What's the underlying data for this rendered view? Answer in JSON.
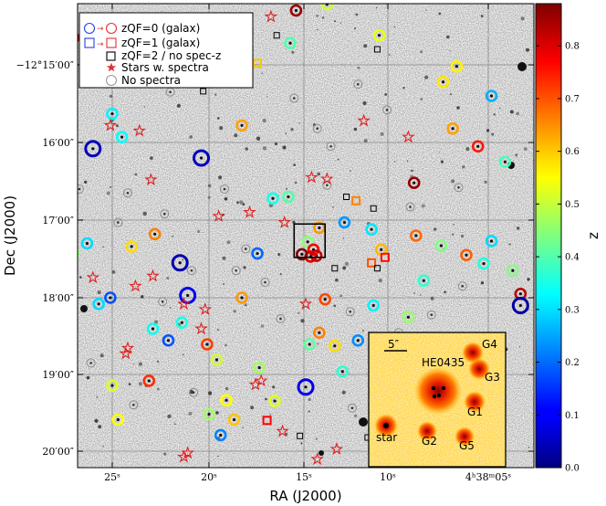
{
  "chart_data": {
    "type": "scatter",
    "xlabel": "RA (J2000)",
    "ylabel": "Dec (J2000)",
    "x_tick_labels": [
      "25ˢ",
      "20ˢ",
      "15ˢ",
      "10ˢ",
      "4ʰ38ᵐ05ˢ"
    ],
    "y_tick_labels": [
      "−12°15′00″",
      "16′00″",
      "17′00″",
      "18′00″",
      "19′00″",
      "20′00″"
    ],
    "colorbar": {
      "label": "z",
      "range": [
        0.0,
        0.88
      ],
      "ticks": [
        "0.0",
        "0.1",
        "0.2",
        "0.3",
        "0.4",
        "0.5",
        "0.6",
        "0.7",
        "0.8"
      ],
      "colormap": "jet"
    },
    "legend": {
      "placement": "top-left",
      "entries": [
        {
          "marker": "circle",
          "text": "zQF=0 (galax)"
        },
        {
          "marker": "square",
          "text": "zQF=1 (galax)"
        },
        {
          "marker": "square-black",
          "text": "zQF=2 / no spec-z"
        },
        {
          "marker": "star",
          "text": "Stars w. spectra"
        },
        {
          "marker": "circle-gray",
          "text": "No spectra"
        }
      ]
    },
    "galaxies_zqf0": [
      {
        "x": 25.0,
        "y": -15.63,
        "z": 0.32
      },
      {
        "x": 24.5,
        "y": -15.93,
        "z": 0.33
      },
      {
        "x": 26.0,
        "y": -16.08,
        "z": 0.05
      },
      {
        "x": 19.4,
        "y": -14.92,
        "z": 0.12
      },
      {
        "x": 18.9,
        "y": -14.47,
        "z": 0.44
      },
      {
        "x": 15.8,
        "y": -14.72,
        "z": 0.4
      },
      {
        "x": 13.8,
        "y": -14.05,
        "z": 0.47
      },
      {
        "x": 13.9,
        "y": -14.22,
        "z": 0.51
      },
      {
        "x": 15.5,
        "y": -14.3,
        "z": 0.86
      },
      {
        "x": 20.4,
        "y": -16.2,
        "z": 0.05
      },
      {
        "x": 11.2,
        "y": -14.62,
        "z": 0.53
      },
      {
        "x": 7.9,
        "y": -15.22,
        "z": 0.57
      },
      {
        "x": 7.2,
        "y": -15.02,
        "z": 0.56
      },
      {
        "x": 5.4,
        "y": -15.4,
        "z": 0.26
      },
      {
        "x": 7.4,
        "y": -15.82,
        "z": 0.63
      },
      {
        "x": 6.1,
        "y": -16.05,
        "z": 0.75
      },
      {
        "x": 4.7,
        "y": -16.25,
        "z": 0.39
      },
      {
        "x": 13.0,
        "y": -17.03,
        "z": 0.24
      },
      {
        "x": 11.6,
        "y": -17.12,
        "z": 0.31
      },
      {
        "x": 14.3,
        "y": -17.1,
        "z": 0.64
      },
      {
        "x": 14.9,
        "y": -17.28,
        "z": 0.45
      },
      {
        "x": 14.6,
        "y": -17.38,
        "z": 0.78
      },
      {
        "x": 14.45,
        "y": -17.46,
        "z": 0.82
      },
      {
        "x": 14.75,
        "y": -17.47,
        "z": 0.8
      },
      {
        "x": 15.2,
        "y": -17.44,
        "z": 0.88
      },
      {
        "x": 21.5,
        "y": -17.55,
        "z": 0.04
      },
      {
        "x": 17.5,
        "y": -17.43,
        "z": 0.2
      },
      {
        "x": 26.3,
        "y": -17.3,
        "z": 0.3
      },
      {
        "x": 27.0,
        "y": -17.43,
        "z": 0.45
      },
      {
        "x": 24.0,
        "y": -17.34,
        "z": 0.58
      },
      {
        "x": 22.8,
        "y": -17.18,
        "z": 0.66
      },
      {
        "x": 11.1,
        "y": -17.38,
        "z": 0.61
      },
      {
        "x": 9.3,
        "y": -17.2,
        "z": 0.68
      },
      {
        "x": 8.0,
        "y": -17.33,
        "z": 0.44
      },
      {
        "x": 6.7,
        "y": -17.45,
        "z": 0.69
      },
      {
        "x": 5.4,
        "y": -17.27,
        "z": 0.3
      },
      {
        "x": 5.8,
        "y": -17.56,
        "z": 0.36
      },
      {
        "x": 4.3,
        "y": -17.65,
        "z": 0.44
      },
      {
        "x": 8.9,
        "y": -17.78,
        "z": 0.37
      },
      {
        "x": 25.1,
        "y": -18.0,
        "z": 0.18
      },
      {
        "x": 25.7,
        "y": -18.08,
        "z": 0.3
      },
      {
        "x": 21.1,
        "y": -17.97,
        "z": 0.1
      },
      {
        "x": 18.3,
        "y": -18.0,
        "z": 0.64
      },
      {
        "x": 14.0,
        "y": -18.02,
        "z": 0.71
      },
      {
        "x": 11.5,
        "y": -18.1,
        "z": 0.32
      },
      {
        "x": 9.7,
        "y": -18.25,
        "z": 0.46
      },
      {
        "x": 3.9,
        "y": -17.95,
        "z": 0.83
      },
      {
        "x": 3.9,
        "y": -18.1,
        "z": 0.03
      },
      {
        "x": 27.4,
        "y": -18.05,
        "z": 0.86
      },
      {
        "x": 21.4,
        "y": -18.32,
        "z": 0.35
      },
      {
        "x": 22.9,
        "y": -18.4,
        "z": 0.34
      },
      {
        "x": 22.1,
        "y": -18.55,
        "z": 0.18
      },
      {
        "x": 20.1,
        "y": -18.6,
        "z": 0.72
      },
      {
        "x": 14.3,
        "y": -18.45,
        "z": 0.66
      },
      {
        "x": 14.8,
        "y": -18.6,
        "z": 0.41
      },
      {
        "x": 13.5,
        "y": -18.62,
        "z": 0.58
      },
      {
        "x": 12.3,
        "y": -18.55,
        "z": 0.23
      },
      {
        "x": 11.0,
        "y": -18.7,
        "z": 0.58
      },
      {
        "x": 10.7,
        "y": -18.85,
        "z": 0.48
      },
      {
        "x": 17.4,
        "y": -18.9,
        "z": 0.47
      },
      {
        "x": 19.6,
        "y": -18.8,
        "z": 0.51
      },
      {
        "x": 15.0,
        "y": -19.15,
        "z": 0.09
      },
      {
        "x": 13.1,
        "y": -18.95,
        "z": 0.37
      },
      {
        "x": 25.0,
        "y": -19.13,
        "z": 0.52
      },
      {
        "x": 23.1,
        "y": -19.07,
        "z": 0.73
      },
      {
        "x": 19.1,
        "y": -19.32,
        "z": 0.55
      },
      {
        "x": 16.6,
        "y": -19.33,
        "z": 0.52
      },
      {
        "x": 18.7,
        "y": -19.57,
        "z": 0.6
      },
      {
        "x": 20.0,
        "y": -19.5,
        "z": 0.47
      },
      {
        "x": 19.4,
        "y": -19.77,
        "z": 0.22
      },
      {
        "x": 10.4,
        "y": -19.75,
        "z": 0.73
      },
      {
        "x": 24.7,
        "y": -19.57,
        "z": 0.55
      },
      {
        "x": 7.1,
        "y": -18.72,
        "z": 0.2
      },
      {
        "x": 27.0,
        "y": -14.65,
        "z": 0.82
      },
      {
        "x": 18.3,
        "y": -15.78,
        "z": 0.63
      },
      {
        "x": 16.7,
        "y": -16.72,
        "z": 0.35
      },
      {
        "x": 15.9,
        "y": -16.7,
        "z": 0.4
      },
      {
        "x": 9.4,
        "y": -16.52,
        "z": 0.86
      }
    ],
    "galaxies_zqf1": [
      {
        "x": 17.5,
        "y": -14.98,
        "z": 0.6
      },
      {
        "x": 12.4,
        "y": -16.75,
        "z": 0.66
      },
      {
        "x": 11.6,
        "y": -17.55,
        "z": 0.7
      },
      {
        "x": 17.0,
        "y": -19.58,
        "z": 0.77
      },
      {
        "x": 10.9,
        "y": -17.48,
        "z": 0.76
      }
    ],
    "no_specz": [
      {
        "x": 20.0,
        "y": -15.05
      },
      {
        "x": 19.6,
        "y": -15.13
      },
      {
        "x": 20.3,
        "y": -15.34
      },
      {
        "x": 12.9,
        "y": -16.7
      },
      {
        "x": 11.5,
        "y": -16.85
      },
      {
        "x": 11.3,
        "y": -17.62
      },
      {
        "x": 13.5,
        "y": -17.62
      },
      {
        "x": 15.3,
        "y": -19.78
      },
      {
        "x": 11.8,
        "y": -19.8
      },
      {
        "x": 11.3,
        "y": -14.8
      },
      {
        "x": 16.5,
        "y": -14.62
      }
    ],
    "stars": [
      {
        "x": 17.6,
        "y": -14.02
      },
      {
        "x": 16.8,
        "y": -14.38
      },
      {
        "x": 25.1,
        "y": -15.78
      },
      {
        "x": 23.6,
        "y": -15.85
      },
      {
        "x": 12.0,
        "y": -15.72
      },
      {
        "x": 9.7,
        "y": -15.93
      },
      {
        "x": 23.0,
        "y": -16.48
      },
      {
        "x": 17.9,
        "y": -16.9
      },
      {
        "x": 14.7,
        "y": -16.45
      },
      {
        "x": 19.5,
        "y": -16.95
      },
      {
        "x": 16.1,
        "y": -17.03
      },
      {
        "x": 23.8,
        "y": -17.85
      },
      {
        "x": 22.9,
        "y": -17.72
      },
      {
        "x": 15.0,
        "y": -18.08
      },
      {
        "x": 20.2,
        "y": -18.15
      },
      {
        "x": 20.4,
        "y": -18.4
      },
      {
        "x": 21.3,
        "y": -18.08
      },
      {
        "x": 24.2,
        "y": -18.65
      },
      {
        "x": 24.3,
        "y": -18.72
      },
      {
        "x": 17.3,
        "y": -19.07
      },
      {
        "x": 17.6,
        "y": -19.12
      },
      {
        "x": 21.3,
        "y": -20.05
      },
      {
        "x": 21.1,
        "y": -20.0
      },
      {
        "x": 14.4,
        "y": -20.08
      },
      {
        "x": 13.4,
        "y": -19.95
      },
      {
        "x": 13.9,
        "y": -16.47
      },
      {
        "x": 26.0,
        "y": -17.74
      },
      {
        "x": 16.2,
        "y": -19.72
      }
    ],
    "no_spectra": [
      {
        "x": 13.9,
        "y": -16.55
      },
      {
        "x": 13.7,
        "y": -16.05
      },
      {
        "x": 24.2,
        "y": -16.65
      },
      {
        "x": 20.9,
        "y": -17.65
      },
      {
        "x": 23.9,
        "y": -19.38
      },
      {
        "x": 22.4,
        "y": -18.05
      },
      {
        "x": 19.2,
        "y": -16.6
      },
      {
        "x": 18.1,
        "y": -17.37
      },
      {
        "x": 12.6,
        "y": -19.42
      },
      {
        "x": 10.2,
        "y": -18.45
      },
      {
        "x": 6.9,
        "y": -17.85
      },
      {
        "x": 9.9,
        "y": -19.1
      },
      {
        "x": 26.1,
        "y": -18.84
      },
      {
        "x": 20.8,
        "y": -19.22
      },
      {
        "x": 12.7,
        "y": -18.18
      },
      {
        "x": 8.5,
        "y": -18.22
      },
      {
        "x": 9.6,
        "y": -16.83
      },
      {
        "x": 7.1,
        "y": -16.58
      },
      {
        "x": 15.6,
        "y": -15.43
      },
      {
        "x": 12.3,
        "y": -15.25
      },
      {
        "x": 22.0,
        "y": -15.35
      },
      {
        "x": 22.3,
        "y": -16.92
      },
      {
        "x": 24.7,
        "y": -17.03
      },
      {
        "x": 26.7,
        "y": -16.6
      },
      {
        "x": 16.3,
        "y": -18.27
      },
      {
        "x": 17.1,
        "y": -17.8
      },
      {
        "x": 14.4,
        "y": -15.82
      },
      {
        "x": 10.8,
        "y": -15.58
      },
      {
        "x": 18.6,
        "y": -17.65
      }
    ],
    "box_selection": {
      "x_range": [
        14.0,
        15.6
      ],
      "y_range": [
        -17.05,
        -17.48
      ]
    },
    "inset": {
      "labels": [
        "5″",
        "HE0435",
        "G1",
        "G2",
        "G3",
        "G4",
        "G5",
        "star"
      ],
      "objects": [
        {
          "label": "G4",
          "z": 0.78
        },
        {
          "label": "G3",
          "z": 0.82
        },
        {
          "label": "G1",
          "z": 0.8
        },
        {
          "label": "G2",
          "z": 0.85
        },
        {
          "label": "G5",
          "z": 0.83
        },
        {
          "label": "star",
          "z": 0.88
        },
        {
          "label": "HE0435",
          "z": 0.88
        }
      ]
    }
  }
}
